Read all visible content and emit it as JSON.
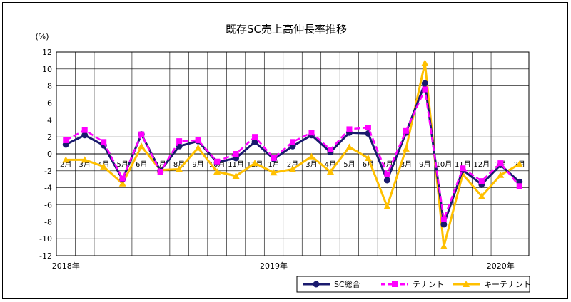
{
  "chart_data": {
    "type": "line",
    "title": "既存SC売上高伸長率推移",
    "ylabel": "(%)",
    "ylim": [
      -12,
      12
    ],
    "yticks": [
      12,
      10,
      8,
      6,
      4,
      2,
      0,
      -2,
      -4,
      -6,
      -8,
      -10,
      -12
    ],
    "grid": true,
    "legend_position": "bottom-right",
    "categories": [
      "2月",
      "3月",
      "4月",
      "5月",
      "6月",
      "7月",
      "8月",
      "9月",
      "10月",
      "11月",
      "12月",
      "1月",
      "2月",
      "3月",
      "4月",
      "5月",
      "6月",
      "7月",
      "8月",
      "9月",
      "10月",
      "11月",
      "12月",
      "1月",
      "2月"
    ],
    "year_labels": [
      {
        "label": "2018年",
        "index": 0
      },
      {
        "label": "2019年",
        "index": 11
      },
      {
        "label": "2020年",
        "index": 23
      }
    ],
    "series": [
      {
        "name": "SC総合",
        "color": "#1a1a6e",
        "marker": "circle",
        "dash": false,
        "values": [
          1.1,
          2.2,
          1.0,
          -3.0,
          2.3,
          -2.0,
          0.9,
          1.5,
          -1.0,
          -0.5,
          1.4,
          -0.6,
          0.9,
          2.2,
          0.2,
          2.5,
          2.4,
          -3.1,
          2.5,
          8.3,
          -8.3,
          -1.9,
          -3.6,
          -1.3,
          -3.3
        ]
      },
      {
        "name": "テナント",
        "color": "#ff00ff",
        "marker": "square",
        "dash": true,
        "values": [
          1.6,
          2.8,
          1.4,
          -2.9,
          2.3,
          -2.1,
          1.5,
          1.6,
          -0.9,
          0.0,
          2.0,
          -0.5,
          1.4,
          2.5,
          0.5,
          2.9,
          3.1,
          -2.4,
          2.7,
          7.6,
          -7.7,
          -1.7,
          -3.2,
          -1.1,
          -3.8
        ]
      },
      {
        "name": "キーテナント",
        "color": "#ffc000",
        "marker": "triangle",
        "dash": false,
        "values": [
          -0.7,
          -0.7,
          -1.5,
          -3.5,
          0.9,
          -1.9,
          -1.8,
          0.7,
          -2.1,
          -2.6,
          -1.1,
          -2.2,
          -1.8,
          -0.3,
          -2.1,
          0.8,
          -0.5,
          -6.2,
          0.6,
          10.7,
          -10.9,
          -2.4,
          -5.0,
          -2.5,
          -1.2
        ]
      }
    ]
  }
}
